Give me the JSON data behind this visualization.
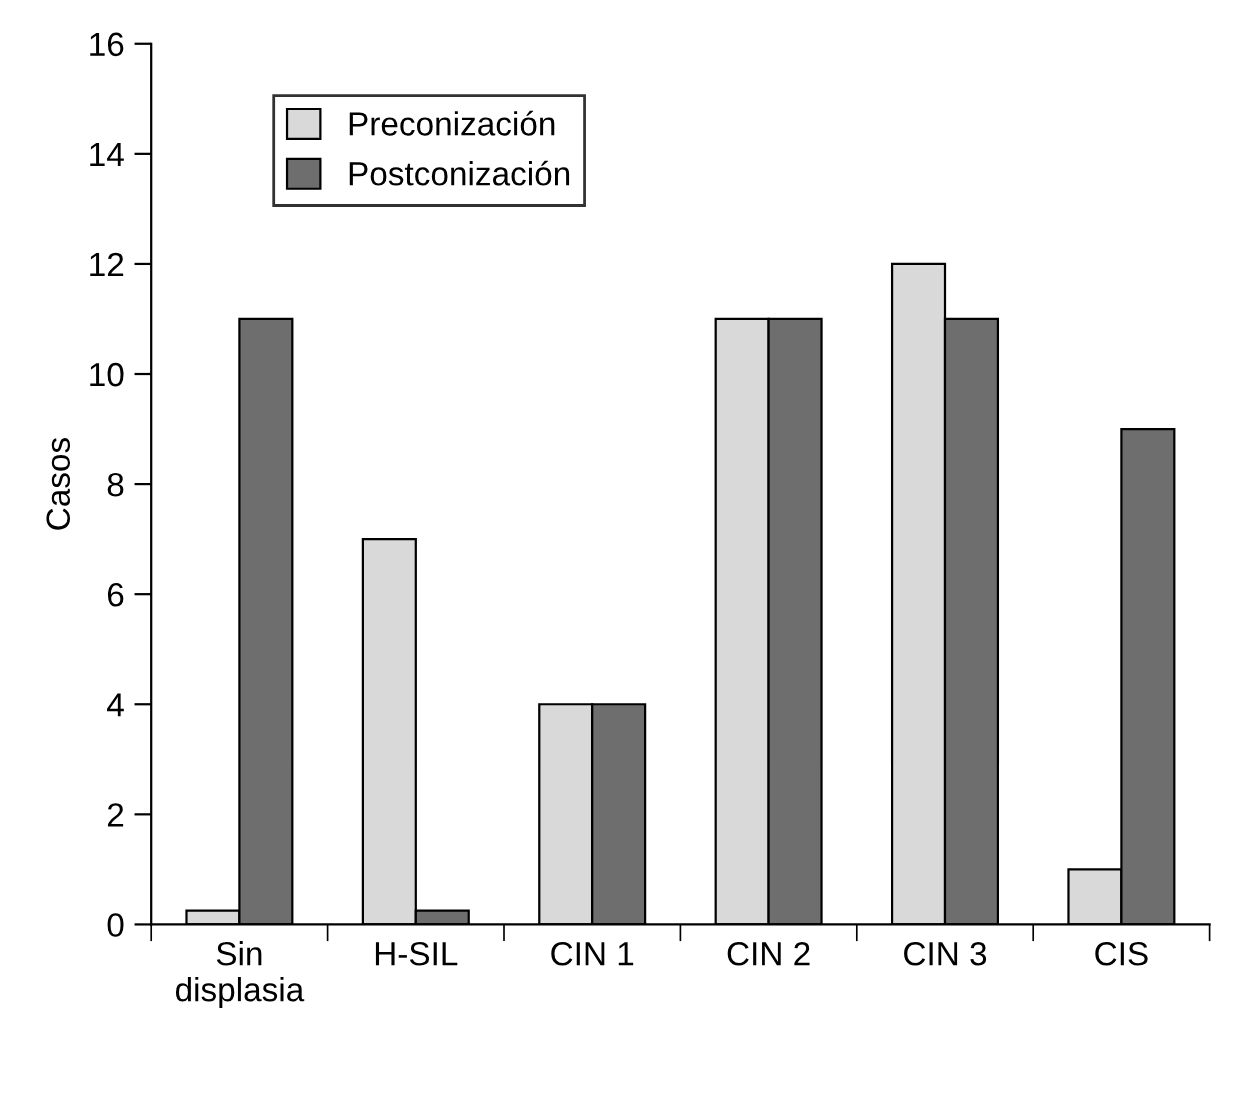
{
  "chart_data": {
    "type": "bar",
    "ylabel": "Casos",
    "categories": [
      "Sin\ndisplasia",
      "H-SIL",
      "CIN 1",
      "CIN 2",
      "CIN 3",
      "CIS"
    ],
    "series": [
      {
        "name": "Preconización",
        "color": "#d9d9d9",
        "values": [
          0.25,
          7,
          4,
          11,
          12,
          1
        ]
      },
      {
        "name": "Postconización",
        "color": "#6e6e6e",
        "values": [
          11,
          0.25,
          4,
          11,
          11,
          9
        ]
      }
    ],
    "ylim": [
      0,
      16
    ],
    "yticks": [
      0,
      2,
      4,
      6,
      8,
      10,
      12,
      14,
      16
    ],
    "grid": false,
    "legend": "top left"
  }
}
